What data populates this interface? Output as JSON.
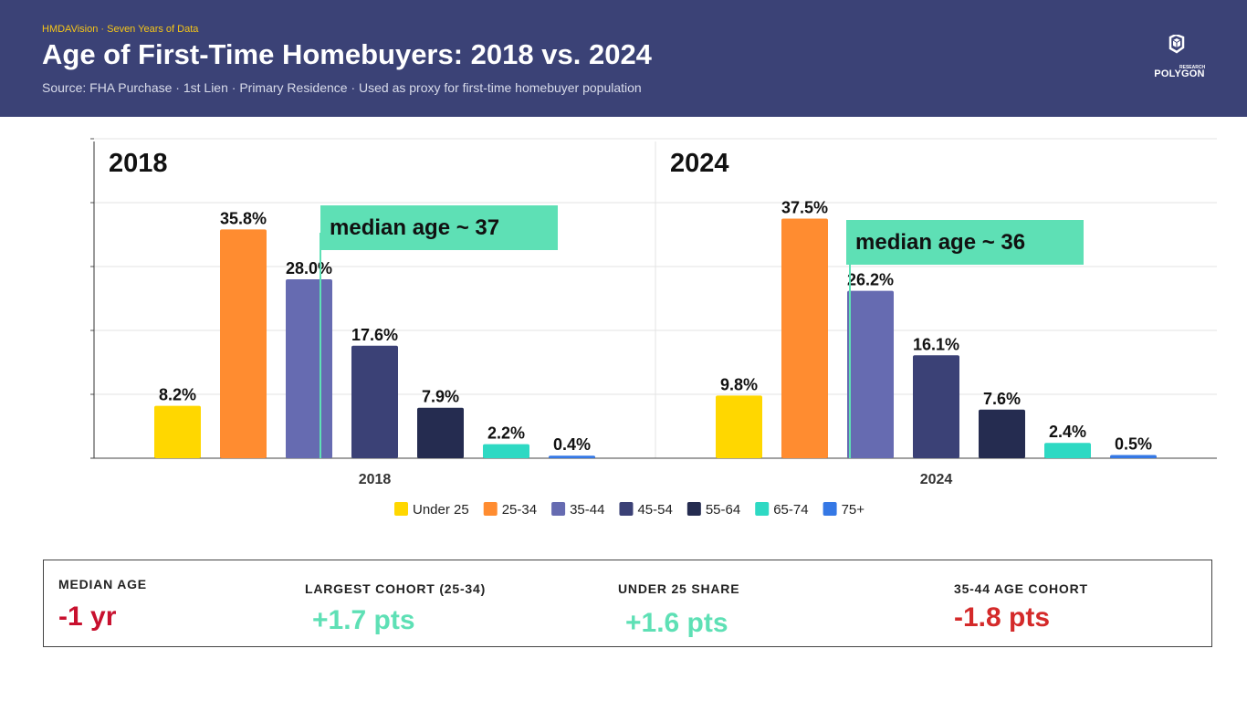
{
  "header": {
    "kicker": "HMDAVision · Seven Years of Data",
    "title": "Age of First-Time Homebuyers: 2018 vs. 2024",
    "subtitle": "Source: FHA Purchase · 1st Lien · Primary Residence · Used as proxy for first-time homebuyer population",
    "logo_small": "RESEARCH",
    "logo_word": "POLYGON"
  },
  "colors": {
    "header_bg": "#3b4276",
    "kicker": "#f5c518",
    "annotation_bg": "#5ee0b5",
    "positive": "#5ee0b5",
    "negative": "#d42a2a"
  },
  "chart_data": {
    "type": "bar",
    "series_names": [
      "Under 25",
      "25-34",
      "35-44",
      "45-54",
      "55-64",
      "65-74",
      "75+"
    ],
    "series_colors": [
      "#ffd700",
      "#ff8c30",
      "#666bb1",
      "#3b4176",
      "#252c50",
      "#2ed9c3",
      "#3578e5"
    ],
    "value_suffix": "%",
    "ylim": [
      0,
      50
    ],
    "grid": true,
    "legend_position": "bottom",
    "panels": [
      {
        "year": "2018",
        "values": [
          8.2,
          35.8,
          28.0,
          17.6,
          7.9,
          2.2,
          0.4
        ],
        "labels": [
          "8.2%",
          "35.8%",
          "28.0%",
          "17.6%",
          "7.9%",
          "2.2%",
          "0.4%"
        ],
        "annotation": "median age ~ 37",
        "median_age": 37
      },
      {
        "year": "2024",
        "values": [
          9.8,
          37.5,
          26.2,
          16.1,
          7.6,
          2.4,
          0.5
        ],
        "labels": [
          "9.8%",
          "37.5%",
          "26.2%",
          "16.1%",
          "7.6%",
          "2.4%",
          "0.5%"
        ],
        "annotation": "median age ~ 36",
        "median_age": 36
      }
    ]
  },
  "stats": [
    {
      "label": "MEDIAN AGE",
      "value": "-1 yr",
      "color": "#c8102e"
    },
    {
      "label": "LARGEST COHORT (25-34)",
      "value": "+1.7 pts",
      "color": "#5ee0b5"
    },
    {
      "label": "UNDER 25 SHARE",
      "value": "+1.6 pts",
      "color": "#5ee0b5"
    },
    {
      "label": "35-44 AGE COHORT",
      "value": "-1.8 pts",
      "color": "#d42a2a"
    }
  ]
}
